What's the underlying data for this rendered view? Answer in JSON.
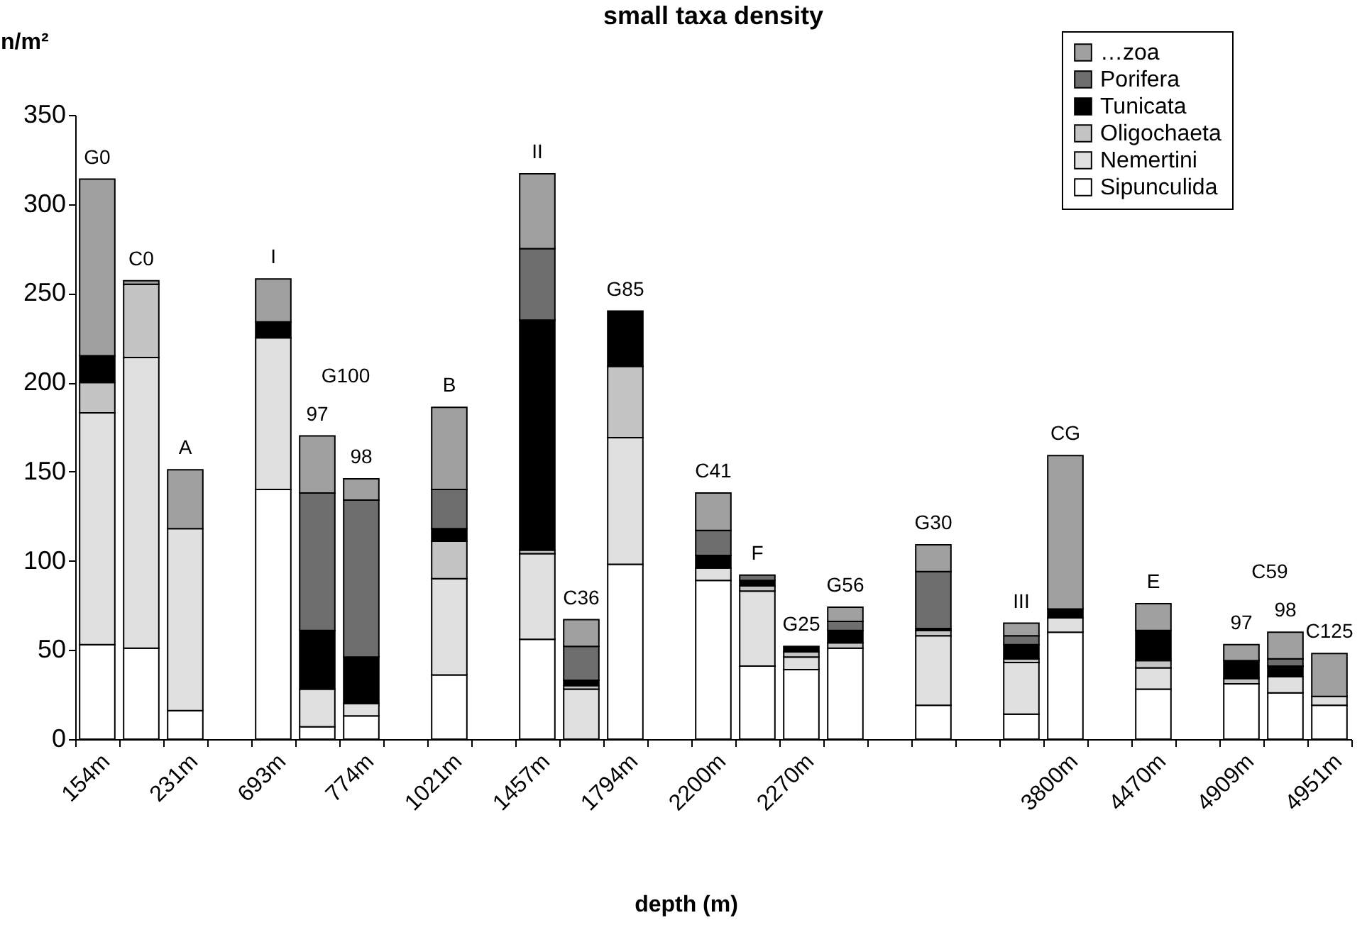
{
  "chart_data": {
    "type": "bar",
    "title": "small taxa density",
    "xlabel": "depth (m)",
    "ylabel": "n/m²",
    "categories": [
      "154m",
      null,
      "231m",
      null,
      "693m",
      null,
      "774m",
      null,
      "1021m",
      null,
      "1457m",
      null,
      "1794m",
      null,
      "2200m",
      null,
      "2270m",
      null,
      null,
      null,
      null,
      null,
      "3800m",
      null,
      "4470m",
      null,
      "4909m",
      null,
      "4951m"
    ],
    "series": [
      {
        "name": "Sipunculida",
        "color": "#ffffff",
        "values": [
          53,
          51,
          16,
          null,
          140,
          7,
          13,
          null,
          36,
          null,
          56,
          null,
          98,
          null,
          89,
          41,
          39,
          51,
          null,
          19,
          null,
          14,
          60,
          null,
          28,
          null,
          31,
          26,
          19
        ]
      },
      {
        "name": "Nemertini",
        "color": "#e0e0e0",
        "values": [
          130,
          163,
          102,
          null,
          85,
          21,
          7,
          null,
          54,
          null,
          48,
          28,
          71,
          null,
          7,
          42,
          7,
          null,
          null,
          39,
          null,
          29,
          8,
          null,
          12,
          null,
          null,
          9,
          5
        ]
      },
      {
        "name": "Oligochaeta",
        "color": "#c4c4c4",
        "values": [
          17,
          41,
          null,
          null,
          null,
          null,
          null,
          null,
          21,
          null,
          2,
          2,
          40,
          null,
          null,
          3,
          3,
          3,
          null,
          3,
          null,
          2,
          null,
          null,
          4,
          null,
          3,
          null,
          null
        ]
      },
      {
        "name": "Tunicata",
        "color": "#000000",
        "values": [
          15,
          null,
          null,
          null,
          9,
          33,
          26,
          null,
          7,
          null,
          129,
          3,
          31,
          null,
          7,
          3,
          3,
          7,
          null,
          1,
          null,
          8,
          5,
          null,
          17,
          null,
          10,
          6,
          null
        ]
      },
      {
        "name": "Porifera",
        "color": "#6e6e6e",
        "values": [
          null,
          null,
          null,
          null,
          null,
          77,
          88,
          null,
          22,
          null,
          40,
          19,
          null,
          null,
          14,
          3,
          null,
          5,
          null,
          32,
          null,
          5,
          null,
          null,
          null,
          null,
          null,
          4,
          null
        ]
      },
      {
        "name": "…zoa",
        "color": "#a0a0a0",
        "values": [
          99,
          2,
          33,
          null,
          24,
          32,
          12,
          null,
          46,
          null,
          42,
          15,
          null,
          null,
          21,
          null,
          null,
          8,
          null,
          15,
          null,
          7,
          86,
          null,
          15,
          null,
          9,
          15,
          24
        ]
      }
    ],
    "stacked": true,
    "ylim": [
      0,
      350
    ],
    "yticks": [
      0,
      50,
      100,
      150,
      200,
      250,
      300,
      350
    ],
    "grid": false,
    "legend": "top right",
    "annotations": [
      "G0",
      "C0",
      "A",
      "I",
      "97",
      "98",
      "B",
      "II",
      "C36",
      "G85",
      "C41",
      "F",
      "G25",
      "G56",
      "G30",
      "III",
      "CG",
      "E",
      "97",
      "98",
      "C125",
      "G100",
      "C59"
    ]
  }
}
